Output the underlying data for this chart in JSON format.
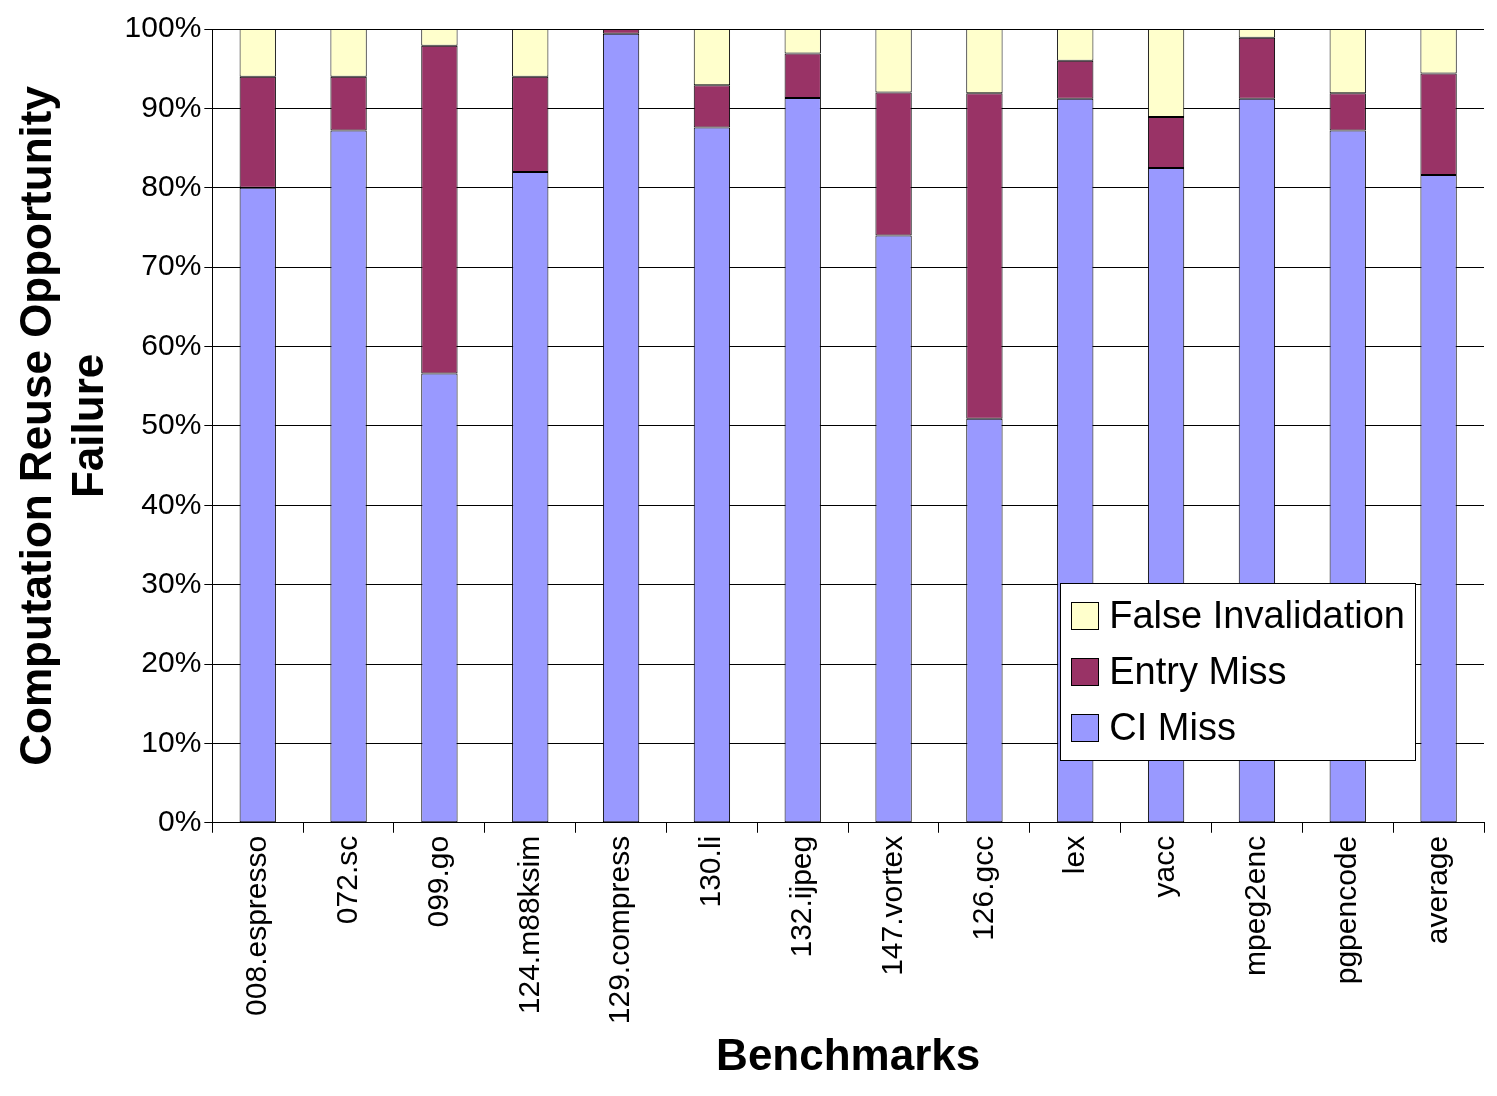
{
  "chart_data": {
    "type": "bar",
    "stacked": true,
    "xlabel": "Benchmarks",
    "ylabel": "Computation Reuse Opportunity Failure",
    "categories": [
      "008.espresso",
      "072.sc",
      "099.go",
      "124.m88ksim",
      "129.compress",
      "130.li",
      "132.ijpeg",
      "147.vortex",
      "126.gcc",
      "lex",
      "yacc",
      "mpeg2enc",
      "pgpencode",
      "average"
    ],
    "series": [
      {
        "name": "CI Miss",
        "color": "#9999ff",
        "values": [
          80,
          87.2,
          56.6,
          82,
          99.4,
          87.6,
          91.3,
          74,
          50.9,
          91.2,
          82.5,
          91.2,
          87.2,
          81.6
        ]
      },
      {
        "name": "Entry Miss",
        "color": "#993366",
        "values": [
          14,
          6.8,
          41.3,
          12,
          0.6,
          5.3,
          5.6,
          18,
          41,
          4.8,
          6.4,
          7.7,
          4.7,
          12.8
        ]
      },
      {
        "name": "False Invalidation",
        "color": "#ffffcc",
        "values": [
          6,
          6,
          2.1,
          6,
          null,
          7.1,
          3.1,
          8,
          8.1,
          4,
          11.1,
          1.1,
          8.1,
          5.6
        ]
      }
    ],
    "ylim": [
      0,
      100
    ],
    "yticks": [
      {
        "value": 0,
        "label": "0%"
      },
      {
        "value": 10,
        "label": "10%"
      },
      {
        "value": 20,
        "label": "20%"
      },
      {
        "value": 30,
        "label": "30%"
      },
      {
        "value": 40,
        "label": "40%"
      },
      {
        "value": 50,
        "label": "50%"
      },
      {
        "value": 60,
        "label": "60%"
      },
      {
        "value": 70,
        "label": "70%"
      },
      {
        "value": 80,
        "label": "80%"
      },
      {
        "value": 90,
        "label": "90%"
      },
      {
        "value": 100,
        "label": "100%"
      }
    ],
    "grid": "y",
    "legend": "bottom right"
  }
}
